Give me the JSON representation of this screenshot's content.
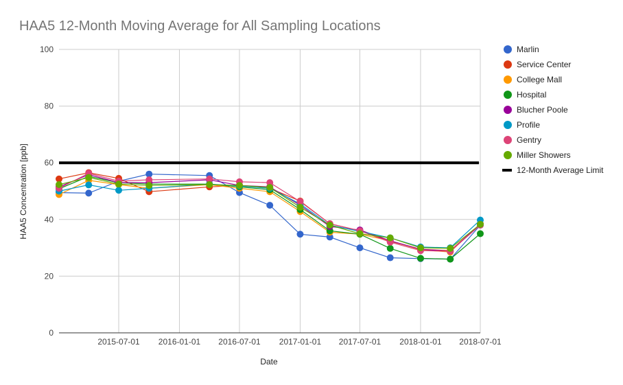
{
  "chart_data": {
    "type": "line",
    "title": "HAA5 12-Month Moving Average for All Sampling Locations",
    "xlabel": "Date",
    "ylabel": "HAA5 Concentration [ppb]",
    "ylim": [
      0,
      100
    ],
    "yticks": [
      0,
      20,
      40,
      60,
      80,
      100
    ],
    "xlim": [
      "2015-01-01",
      "2018-07-01"
    ],
    "xticks": [
      "2015-07-01",
      "2016-01-01",
      "2016-07-01",
      "2017-01-01",
      "2017-07-01",
      "2018-01-01",
      "2018-07-01"
    ],
    "x": [
      "2015-01-01",
      "2015-04-01",
      "2015-07-01",
      "2015-10-01",
      "2016-04-01",
      "2016-07-01",
      "2016-10-01",
      "2017-01-01",
      "2017-04-01",
      "2017-07-01",
      "2017-10-01",
      "2018-01-01",
      "2018-04-01",
      "2018-07-01"
    ],
    "series": [
      {
        "name": "Marlin",
        "color": "#3366cc",
        "values": [
          49.5,
          49.3,
          53.5,
          56.0,
          55.5,
          49.5,
          45.0,
          34.8,
          33.8,
          30.0,
          26.5,
          26.2,
          26.0,
          38.0
        ]
      },
      {
        "name": "Service Center",
        "color": "#dc3912",
        "values": [
          54.3,
          56.5,
          54.5,
          49.8,
          51.5,
          52.0,
          51.0,
          46.5,
          38.5,
          36.0,
          32.3,
          29.5,
          29.0,
          38.3
        ]
      },
      {
        "name": "College Mall",
        "color": "#ff9900",
        "values": [
          48.8,
          53.8,
          52.3,
          51.0,
          52.3,
          51.0,
          49.8,
          42.8,
          35.5,
          34.8,
          32.5,
          29.3,
          28.5,
          38.5
        ]
      },
      {
        "name": "Hospital",
        "color": "#109618",
        "values": [
          50.8,
          55.2,
          53.0,
          52.5,
          52.5,
          51.5,
          50.5,
          43.5,
          36.0,
          34.8,
          29.8,
          26.3,
          26.0,
          35.0
        ]
      },
      {
        "name": "Blucher Poole",
        "color": "#990099",
        "values": [
          51.5,
          55.8,
          53.0,
          53.0,
          54.0,
          52.0,
          51.5,
          45.0,
          37.5,
          36.3,
          32.5,
          29.5,
          28.8,
          38.3
        ]
      },
      {
        "name": "Profile",
        "color": "#0099c6",
        "values": [
          50.0,
          52.2,
          50.3,
          51.0,
          52.5,
          51.8,
          51.0,
          45.5,
          38.0,
          35.8,
          33.5,
          30.3,
          30.0,
          39.8
        ]
      },
      {
        "name": "Gentry",
        "color": "#dd4477",
        "values": [
          51.0,
          56.3,
          53.5,
          54.0,
          54.3,
          53.3,
          53.0,
          46.3,
          38.5,
          36.0,
          32.0,
          29.0,
          28.8,
          38.0
        ]
      },
      {
        "name": "Miller Showers",
        "color": "#66aa00",
        "values": [
          52.3,
          54.8,
          52.5,
          52.0,
          52.3,
          52.0,
          51.3,
          44.3,
          38.0,
          35.0,
          33.5,
          30.0,
          29.8,
          38.3
        ]
      }
    ],
    "limit": {
      "name": "12-Month Average Limit",
      "color": "#000000",
      "value": 60
    },
    "legend_position": "right"
  }
}
